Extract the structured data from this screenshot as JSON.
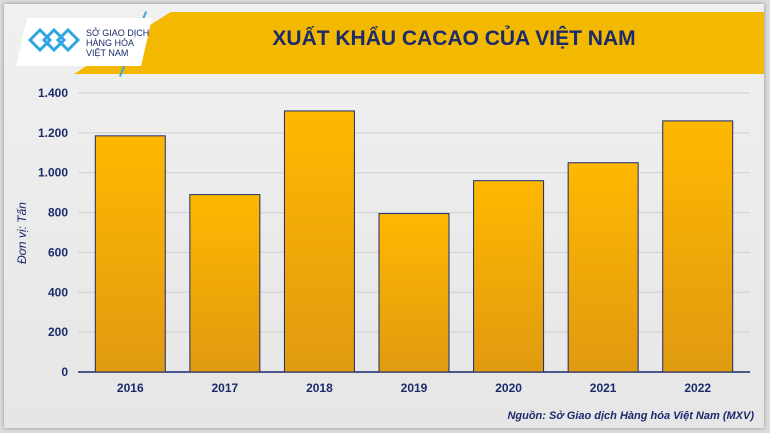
{
  "logo": {
    "lines": [
      "SỞ GIAO DỊCH",
      "HÀNG HÓA",
      "VIỆT NAM"
    ]
  },
  "source": "Nguồn: Sở Giao dịch Hàng hóa Việt Nam (MXV)",
  "colors": {
    "bar": "#f5b000",
    "bar_border": "#1b2a6b",
    "banner": "#f3b800",
    "text": "#1b2a6b"
  },
  "chart_data": {
    "type": "bar",
    "title": "XUẤT KHẨU CACAO CỦA VIỆT NAM",
    "ylabel": "Đơn vị: Tấn",
    "xlabel": "",
    "categories": [
      "2016",
      "2017",
      "2018",
      "2019",
      "2020",
      "2021",
      "2022"
    ],
    "values": [
      1185,
      890,
      1310,
      795,
      960,
      1050,
      1260
    ],
    "ylim": [
      0,
      1400
    ],
    "yticks": [
      0,
      200,
      400,
      600,
      800,
      1000,
      1200,
      1400
    ],
    "ytick_labels": [
      "0",
      "200",
      "400",
      "600",
      "800",
      "1.000",
      "1.200",
      "1.400"
    ],
    "grid": true
  }
}
